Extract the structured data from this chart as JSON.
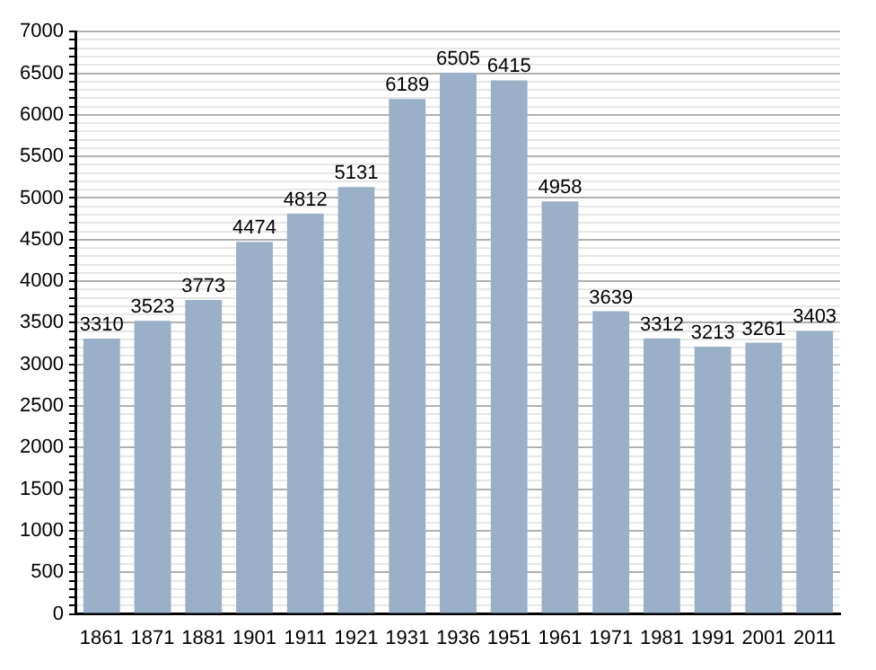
{
  "chart_data": {
    "type": "bar",
    "categories": [
      "1861",
      "1871",
      "1881",
      "1901",
      "1911",
      "1921",
      "1931",
      "1936",
      "1951",
      "1961",
      "1971",
      "1981",
      "1991",
      "2001",
      "2011"
    ],
    "values": [
      3310,
      3523,
      3773,
      4474,
      4812,
      5131,
      6189,
      6505,
      6415,
      4958,
      3639,
      3312,
      3213,
      3261,
      3403
    ],
    "color": "#9ab0c9",
    "data_labels": true,
    "grid": "y",
    "legend": false,
    "ylim": [
      0,
      7000
    ],
    "yticks": [
      0,
      {
        "value": 100,
        "label": null
      },
      {
        "value": 200,
        "label": null
      },
      {
        "value": 300,
        "label": null
      },
      {
        "value": 400,
        "label": null
      },
      500,
      {
        "value": 600,
        "label": null
      },
      {
        "value": 700,
        "label": null
      },
      {
        "value": 800,
        "label": null
      },
      {
        "value": 900,
        "label": null
      },
      1000,
      {
        "value": 1100,
        "label": null
      },
      {
        "value": 1200,
        "label": null
      },
      {
        "value": 1300,
        "label": null
      },
      {
        "value": 1400,
        "label": null
      },
      1500,
      {
        "value": 1600,
        "label": null
      },
      {
        "value": 1700,
        "label": null
      },
      {
        "value": 1800,
        "label": null
      },
      {
        "value": 1900,
        "label": null
      },
      2000,
      {
        "value": 2100,
        "label": null
      },
      {
        "value": 2200,
        "label": null
      },
      {
        "value": 2300,
        "label": null
      },
      {
        "value": 2400,
        "label": null
      },
      2500,
      {
        "value": 2600,
        "label": null
      },
      {
        "value": 2700,
        "label": null
      },
      {
        "value": 2800,
        "label": null
      },
      {
        "value": 2900,
        "label": null
      },
      3000,
      {
        "value": 3100,
        "label": null
      },
      {
        "value": 3200,
        "label": null
      },
      {
        "value": 3300,
        "label": null
      },
      {
        "value": 3400,
        "label": null
      },
      3500,
      {
        "value": 3600,
        "label": null
      },
      {
        "value": 3700,
        "label": null
      },
      {
        "value": 3800,
        "label": null
      },
      {
        "value": 3900,
        "label": null
      },
      4000,
      {
        "value": 4100,
        "label": null
      },
      {
        "value": 4200,
        "label": null
      },
      {
        "value": 4300,
        "label": null
      },
      {
        "value": 4400,
        "label": null
      },
      4500,
      {
        "value": 4600,
        "label": null
      },
      {
        "value": 4700,
        "label": null
      },
      {
        "value": 4800,
        "label": null
      },
      {
        "value": 4900,
        "label": null
      },
      5000,
      {
        "value": 5100,
        "label": null
      },
      {
        "value": 5200,
        "label": null
      },
      {
        "value": 5300,
        "label": null
      },
      {
        "value": 5400,
        "label": null
      },
      5500,
      {
        "value": 5600,
        "label": null
      },
      {
        "value": 5700,
        "label": null
      },
      {
        "value": 5800,
        "label": null
      },
      {
        "value": 5900,
        "label": null
      },
      6000,
      {
        "value": 6100,
        "label": null
      },
      {
        "value": 6200,
        "label": null
      },
      {
        "value": 6300,
        "label": null
      },
      {
        "value": 6400,
        "label": null
      },
      6500,
      {
        "value": 6600,
        "label": null
      },
      {
        "value": 6700,
        "label": null
      },
      {
        "value": 6800,
        "label": null
      },
      {
        "value": 6900,
        "label": null
      },
      7000
    ]
  }
}
